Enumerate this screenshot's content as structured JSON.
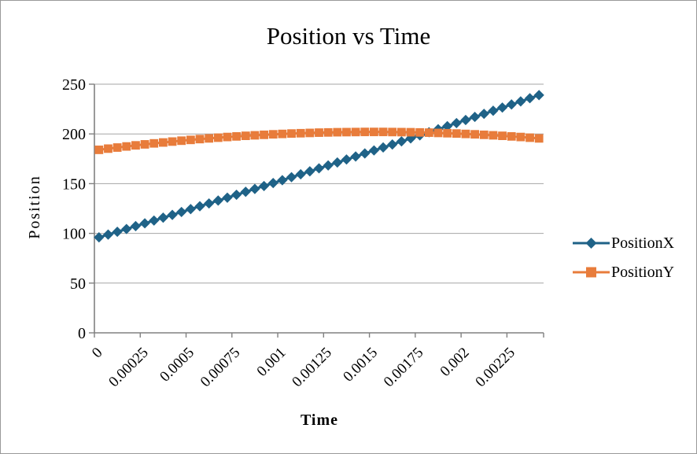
{
  "chart_data": {
    "type": "line",
    "title": "Position vs Time",
    "xlabel": "Time",
    "ylabel": "Position",
    "ylim": [
      0,
      250
    ],
    "y_ticks": [
      0,
      50,
      100,
      150,
      200,
      250
    ],
    "y_tick_labels": [
      "0",
      "50",
      "100",
      "150",
      "200",
      "250"
    ],
    "x_tick_labels": [
      "0",
      "0.00025",
      "0.0005",
      "0.00075",
      "0.001",
      "0.00125",
      "0.0015",
      "0.00175",
      "0.002",
      "0.00225"
    ],
    "x_tick_every_n_points": 5,
    "grid": "horizontal",
    "legend_position": "right",
    "x": [
      0,
      5e-05,
      0.0001,
      0.00015,
      0.0002,
      0.00025,
      0.0003,
      0.00035,
      0.0004,
      0.00045,
      0.0005,
      0.00055,
      0.0006,
      0.00065,
      0.0007,
      0.00075,
      0.0008,
      0.00085,
      0.0009,
      0.00095,
      0.001,
      0.00105,
      0.0011,
      0.00115,
      0.0012,
      0.00125,
      0.0013,
      0.00135,
      0.0014,
      0.00145,
      0.0015,
      0.00155,
      0.0016,
      0.00165,
      0.0017,
      0.00175,
      0.0018,
      0.00185,
      0.0019,
      0.00195,
      0.002,
      0.00205,
      0.0021,
      0.00215,
      0.0022,
      0.00225,
      0.0023,
      0.00235,
      0.0024
    ],
    "series": [
      {
        "name": "PositionX",
        "marker": "diamond",
        "color": "#1F6287",
        "values": [
          96,
          98.8,
          101.6,
          104.4,
          107.3,
          110.1,
          112.9,
          115.8,
          118.6,
          121.5,
          124.4,
          127.3,
          130.1,
          133,
          135.9,
          138.8,
          141.8,
          144.7,
          147.6,
          150.6,
          153.5,
          156.5,
          159.4,
          162.4,
          165.4,
          168.3,
          171.3,
          174.3,
          177.3,
          180.4,
          183.4,
          186.4,
          189.4,
          192.5,
          195.5,
          198.6,
          201.7,
          204.7,
          207.8,
          210.9,
          214,
          217.1,
          220.2,
          223.3,
          226.5,
          229.6,
          232.7,
          235.9,
          239
        ]
      },
      {
        "name": "PositionY",
        "marker": "square",
        "color": "#E87C3B",
        "values": [
          184,
          185.2,
          186.3,
          187.4,
          188.5,
          189.5,
          190.5,
          191.4,
          192.3,
          193.2,
          194,
          194.8,
          195.5,
          196.2,
          196.9,
          197.5,
          198.1,
          198.6,
          199.1,
          199.6,
          200,
          200.4,
          200.7,
          201,
          201.3,
          201.5,
          201.7,
          201.8,
          201.9,
          202,
          202,
          202,
          201.9,
          201.8,
          201.7,
          201.5,
          201.3,
          201,
          200.7,
          200.4,
          200,
          199.6,
          199.1,
          198.6,
          198.1,
          197.5,
          196.9,
          196.2,
          195.5
        ]
      }
    ],
    "colors": {
      "background": "#FFFFFF",
      "border": "#999999",
      "gridline": "#A6A6A6",
      "axis": "#808080",
      "text": "#000000"
    }
  }
}
